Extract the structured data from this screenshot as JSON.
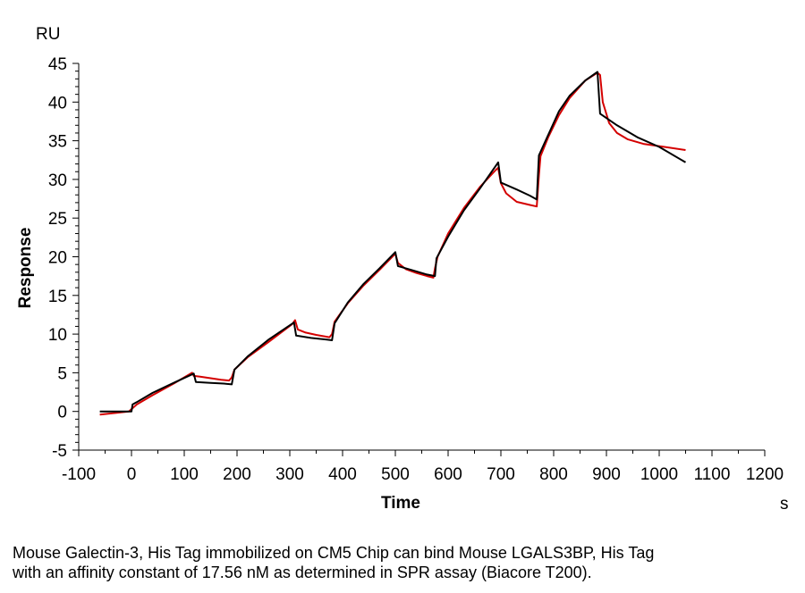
{
  "chart_data": {
    "type": "line",
    "xlabel": "Time",
    "ylabel": "Response",
    "x_unit": "s",
    "y_unit": "RU",
    "xlim": [
      -100,
      1200
    ],
    "ylim": [
      -5,
      45
    ],
    "x_ticks": [
      -100,
      0,
      100,
      200,
      300,
      400,
      500,
      600,
      700,
      800,
      900,
      1000,
      1100,
      1200
    ],
    "y_ticks": [
      -5,
      0,
      5,
      10,
      15,
      20,
      25,
      30,
      35,
      40,
      45
    ],
    "grid": false,
    "series": [
      {
        "color": "#d40000",
        "points": [
          [
            -60,
            -0.4
          ],
          [
            -30,
            -0.2
          ],
          [
            -5,
            0
          ],
          [
            0,
            0.3
          ],
          [
            10,
            0.9
          ],
          [
            40,
            2.1
          ],
          [
            80,
            3.6
          ],
          [
            115,
            5.0
          ],
          [
            118,
            4.6
          ],
          [
            130,
            4.5
          ],
          [
            150,
            4.3
          ],
          [
            170,
            4.1
          ],
          [
            185,
            4.0
          ],
          [
            190,
            4.4
          ],
          [
            195,
            5.4
          ],
          [
            220,
            7.0
          ],
          [
            260,
            9.0
          ],
          [
            305,
            11.3
          ],
          [
            310,
            11.8
          ],
          [
            315,
            10.6
          ],
          [
            330,
            10.2
          ],
          [
            350,
            9.9
          ],
          [
            375,
            9.6
          ],
          [
            380,
            10.0
          ],
          [
            385,
            11.6
          ],
          [
            410,
            14.0
          ],
          [
            440,
            16.3
          ],
          [
            470,
            18.3
          ],
          [
            500,
            20.4
          ],
          [
            505,
            19.2
          ],
          [
            520,
            18.4
          ],
          [
            540,
            17.9
          ],
          [
            560,
            17.5
          ],
          [
            572,
            17.3
          ],
          [
            575,
            18.5
          ],
          [
            580,
            20.0
          ],
          [
            600,
            23.0
          ],
          [
            630,
            26.3
          ],
          [
            660,
            29.0
          ],
          [
            690,
            31.2
          ],
          [
            695,
            31.5
          ],
          [
            700,
            29.5
          ],
          [
            710,
            28.2
          ],
          [
            730,
            27.1
          ],
          [
            755,
            26.7
          ],
          [
            768,
            26.5
          ],
          [
            772,
            30.5
          ],
          [
            775,
            33.0
          ],
          [
            790,
            35.5
          ],
          [
            810,
            38.3
          ],
          [
            830,
            40.5
          ],
          [
            860,
            42.8
          ],
          [
            883,
            43.8
          ],
          [
            888,
            43.5
          ],
          [
            893,
            40.0
          ],
          [
            905,
            37.3
          ],
          [
            920,
            36.0
          ],
          [
            940,
            35.2
          ],
          [
            970,
            34.6
          ],
          [
            1010,
            34.2
          ],
          [
            1050,
            33.8
          ]
        ]
      },
      {
        "color": "#000000",
        "points": [
          [
            -60,
            0
          ],
          [
            -5,
            0
          ],
          [
            0,
            0
          ],
          [
            2,
            0.9
          ],
          [
            10,
            1.2
          ],
          [
            40,
            2.4
          ],
          [
            80,
            3.7
          ],
          [
            118,
            4.9
          ],
          [
            122,
            3.8
          ],
          [
            150,
            3.7
          ],
          [
            175,
            3.6
          ],
          [
            190,
            3.5
          ],
          [
            195,
            5.4
          ],
          [
            220,
            7.1
          ],
          [
            260,
            9.3
          ],
          [
            308,
            11.5
          ],
          [
            312,
            9.8
          ],
          [
            340,
            9.5
          ],
          [
            370,
            9.3
          ],
          [
            380,
            9.2
          ],
          [
            385,
            11.4
          ],
          [
            410,
            14.1
          ],
          [
            440,
            16.5
          ],
          [
            470,
            18.5
          ],
          [
            500,
            20.6
          ],
          [
            505,
            18.8
          ],
          [
            530,
            18.3
          ],
          [
            560,
            17.7
          ],
          [
            575,
            17.5
          ],
          [
            578,
            19.8
          ],
          [
            600,
            22.6
          ],
          [
            630,
            26.0
          ],
          [
            660,
            28.8
          ],
          [
            695,
            32.2
          ],
          [
            700,
            29.6
          ],
          [
            730,
            28.7
          ],
          [
            755,
            27.9
          ],
          [
            768,
            27.4
          ],
          [
            772,
            33.1
          ],
          [
            790,
            35.8
          ],
          [
            810,
            38.8
          ],
          [
            830,
            40.8
          ],
          [
            860,
            42.8
          ],
          [
            883,
            43.9
          ],
          [
            888,
            38.5
          ],
          [
            920,
            37.0
          ],
          [
            960,
            35.4
          ],
          [
            1000,
            34.2
          ],
          [
            1050,
            32.2
          ]
        ]
      }
    ]
  },
  "caption": {
    "line1": "Mouse Galectin-3, His Tag immobilized on CM5 Chip can bind Mouse LGALS3BP, His Tag",
    "line2": "with an affinity constant of 17.56 nM as determined in SPR assay (Biacore T200)."
  }
}
